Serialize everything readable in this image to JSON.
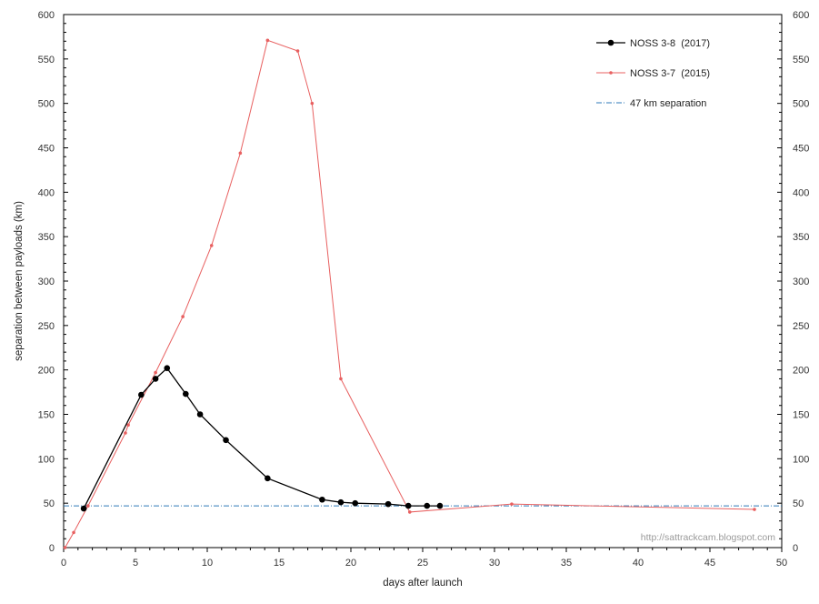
{
  "chart_data": {
    "type": "line",
    "title": "",
    "xlabel": "days after launch",
    "ylabel": "separation between payloads (km)",
    "xlim": [
      0,
      50
    ],
    "ylim": [
      0,
      600
    ],
    "x_ticks": [
      "0",
      "5",
      "10",
      "15",
      "20",
      "25",
      "30",
      "35",
      "40",
      "45",
      "50"
    ],
    "y_ticks": [
      "0",
      "50",
      "100",
      "150",
      "200",
      "250",
      "300",
      "350",
      "400",
      "450",
      "500",
      "550",
      "600"
    ],
    "y_axis_right": true,
    "grid": false,
    "legend_position": "top-right",
    "watermark": "http://sattrackcam.blogspot.com",
    "series": [
      {
        "name": "NOSS 3-8  (2017)",
        "color": "#000000",
        "marker": "circle",
        "points": [
          [
            1.4,
            44
          ],
          [
            5.4,
            172
          ],
          [
            6.4,
            190
          ],
          [
            7.2,
            202
          ],
          [
            8.5,
            173
          ],
          [
            9.5,
            150
          ],
          [
            11.3,
            121
          ],
          [
            14.2,
            78
          ],
          [
            18.0,
            54
          ],
          [
            19.3,
            51
          ],
          [
            20.3,
            50
          ],
          [
            22.6,
            49
          ],
          [
            24.0,
            47
          ],
          [
            25.3,
            47
          ],
          [
            26.2,
            47
          ]
        ]
      },
      {
        "name": "NOSS 3-7  (2015)",
        "color": "#e86060",
        "marker": "small-dot",
        "points": [
          [
            0.1,
            0
          ],
          [
            0.7,
            17
          ],
          [
            1.7,
            47
          ],
          [
            4.3,
            129
          ],
          [
            4.5,
            138
          ],
          [
            6.4,
            197
          ],
          [
            8.3,
            260
          ],
          [
            10.3,
            340
          ],
          [
            12.3,
            444
          ],
          [
            14.2,
            571
          ],
          [
            16.3,
            559
          ],
          [
            17.3,
            500
          ],
          [
            19.3,
            190
          ],
          [
            24.1,
            40
          ],
          [
            31.2,
            49
          ],
          [
            48.1,
            43
          ]
        ]
      },
      {
        "name": "47 km separation",
        "color": "#2e7ab8",
        "style": "dash-dot",
        "points": [
          [
            0,
            47
          ],
          [
            50,
            47
          ]
        ]
      }
    ]
  }
}
